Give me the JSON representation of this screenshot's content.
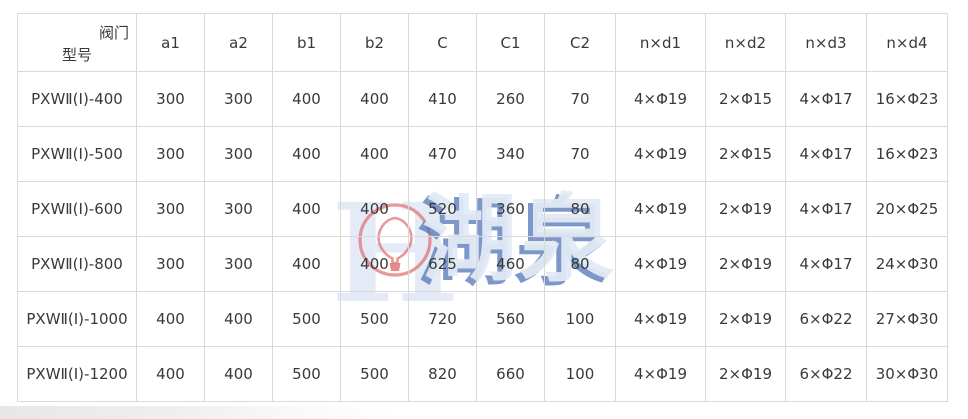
{
  "table": {
    "header_corner": {
      "top": "阀门",
      "bottom": "型号"
    },
    "columns": [
      "a1",
      "a2",
      "b1",
      "b2",
      "C",
      "C1",
      "C2",
      "n×d1",
      "n×d2",
      "n×d3",
      "n×d4"
    ],
    "rows": [
      {
        "model": "PXWⅡ(Ⅰ)-400",
        "values": [
          "300",
          "300",
          "400",
          "400",
          "410",
          "260",
          "70",
          "4×Φ19",
          "2×Φ15",
          "4×Φ17",
          "16×Φ23"
        ]
      },
      {
        "model": "PXWⅡ(Ⅰ)-500",
        "values": [
          "300",
          "300",
          "400",
          "400",
          "470",
          "340",
          "70",
          "4×Φ19",
          "2×Φ15",
          "4×Φ17",
          "16×Φ23"
        ]
      },
      {
        "model": "PXWⅡ(Ⅰ)-600",
        "values": [
          "300",
          "300",
          "400",
          "400",
          "520",
          "360",
          "80",
          "4×Φ19",
          "2×Φ19",
          "4×Φ17",
          "20×Φ25"
        ]
      },
      {
        "model": "PXWⅡ(Ⅰ)-800",
        "values": [
          "300",
          "300",
          "400",
          "400",
          "625",
          "460",
          "80",
          "4×Φ19",
          "2×Φ19",
          "4×Φ17",
          "24×Φ30"
        ]
      },
      {
        "model": "PXWⅡ(Ⅰ)-1000",
        "values": [
          "400",
          "400",
          "500",
          "500",
          "720",
          "560",
          "100",
          "4×Φ19",
          "2×Φ19",
          "6×Φ22",
          "27×Φ30"
        ]
      },
      {
        "model": "PXWⅡ(Ⅰ)-1200",
        "values": [
          "400",
          "400",
          "500",
          "500",
          "820",
          "660",
          "100",
          "4×Φ19",
          "2×Φ19",
          "6×Φ22",
          "30×Φ30"
        ]
      }
    ]
  },
  "watermark": {
    "letter": "H",
    "brand": "湖泉"
  },
  "colors": {
    "border": "#d9d9d9",
    "text": "#393939",
    "watermark_blue": "#587ABA",
    "watermark_pale_blue": "#e4ebf6",
    "logo_red": "#de6a6a"
  }
}
